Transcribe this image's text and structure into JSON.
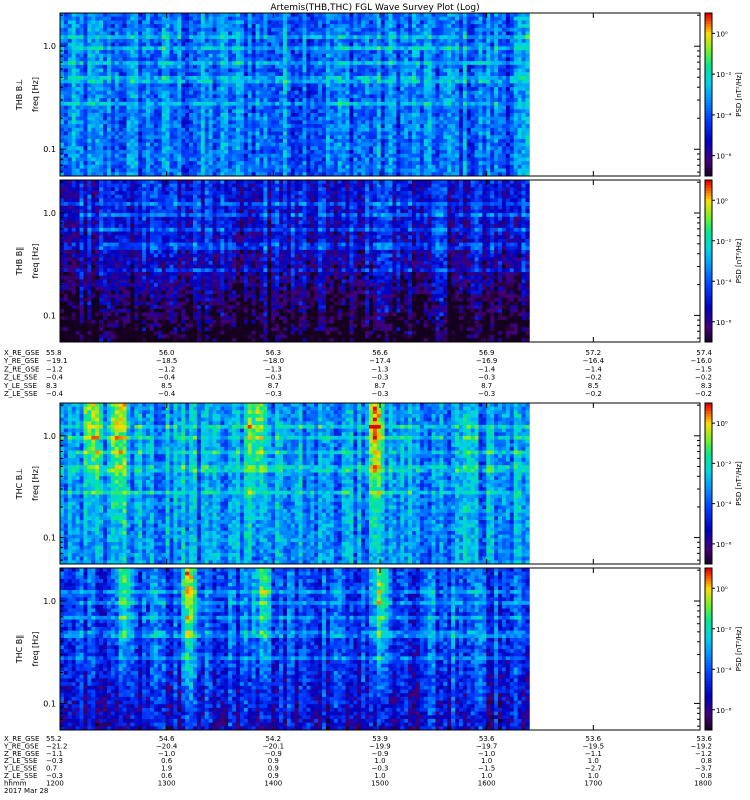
{
  "title": "Artemis(THB,THC) FGL Wave Survey Plot (Log)",
  "chart_data": [
    {
      "type": "heatmap",
      "id": "thb-bperp",
      "ylabel": "THB B⊥",
      "ylabel2": "freq [Hz]",
      "y_scale": "log",
      "ylim": [
        0.055,
        2.1
      ],
      "y_ticks": [
        {
          "v": 1.0,
          "label": "1.0"
        },
        {
          "v": 0.1,
          "label": "0.1"
        }
      ],
      "data_extent_x": [
        1200,
        1640
      ],
      "colorbar": {
        "label": "PSD [nT²/Hz]",
        "scale": "log",
        "range": [
          1e-07,
          10.0
        ],
        "ticks": [
          {
            "v": 1.0,
            "label": "10⁰"
          },
          {
            "v": 0.01,
            "label": "10⁻²"
          },
          {
            "v": 0.0001,
            "label": "10⁻⁴"
          },
          {
            "v": 1e-06,
            "label": "10⁻⁶"
          }
        ]
      },
      "style": {
        "base": 0.42,
        "dark": 0.0,
        "bursts": []
      }
    },
    {
      "type": "heatmap",
      "id": "thb-bpar",
      "ylabel": "THB B∥",
      "ylabel2": "freq [Hz]",
      "y_scale": "log",
      "ylim": [
        0.055,
        2.1
      ],
      "y_ticks": [
        {
          "v": 1.0,
          "label": "1.0"
        },
        {
          "v": 0.1,
          "label": "0.1"
        }
      ],
      "data_extent_x": [
        1200,
        1640
      ],
      "colorbar": {
        "label": "PSD [nT²/Hz]",
        "scale": "log",
        "range": [
          1e-07,
          10.0
        ],
        "ticks": [
          {
            "v": 1.0,
            "label": "10⁰"
          },
          {
            "v": 0.01,
            "label": "10⁻²"
          },
          {
            "v": 0.0001,
            "label": "10⁻⁴"
          },
          {
            "v": 1e-06,
            "label": "10⁻⁶"
          }
        ]
      },
      "style": {
        "base": 0.28,
        "dark": 0.35,
        "bursts": []
      }
    },
    {
      "type": "heatmap",
      "id": "thc-bperp",
      "ylabel": "THC B⊥",
      "ylabel2": "freq [Hz]",
      "y_scale": "log",
      "ylim": [
        0.055,
        2.1
      ],
      "y_ticks": [
        {
          "v": 1.0,
          "label": "1.0"
        },
        {
          "v": 0.1,
          "label": "0.1"
        }
      ],
      "data_extent_x": [
        1200,
        1640
      ],
      "colorbar": {
        "label": "PSD [nT²/Hz]",
        "scale": "log",
        "range": [
          1e-07,
          10.0
        ],
        "ticks": [
          {
            "v": 1.0,
            "label": "10⁰"
          },
          {
            "v": 0.01,
            "label": "10⁻²"
          },
          {
            "v": 0.0001,
            "label": "10⁻⁴"
          },
          {
            "v": 1e-06,
            "label": "10⁻⁶"
          }
        ]
      },
      "style": {
        "base": 0.48,
        "dark": 0.0,
        "bursts": [
          1230,
          1255,
          1385,
          1495
        ]
      }
    },
    {
      "type": "heatmap",
      "id": "thc-bpar",
      "ylabel": "THC B∥",
      "ylabel2": "freq [Hz]",
      "y_scale": "log",
      "ylim": [
        0.055,
        2.1
      ],
      "y_ticks": [
        {
          "v": 1.0,
          "label": "1.0"
        },
        {
          "v": 0.1,
          "label": "0.1"
        }
      ],
      "data_extent_x": [
        1200,
        1640
      ],
      "colorbar": {
        "label": "PSD [nT²/Hz]",
        "scale": "log",
        "range": [
          1e-07,
          10.0
        ],
        "ticks": [
          {
            "v": 1.0,
            "label": "10⁰"
          },
          {
            "v": 0.01,
            "label": "10⁻²"
          },
          {
            "v": 0.0001,
            "label": "10⁻⁴"
          },
          {
            "v": 1e-06,
            "label": "10⁻⁶"
          }
        ]
      },
      "style": {
        "base": 0.38,
        "dark": 0.15,
        "bursts": [
          1260,
          1320,
          1390,
          1500
        ]
      }
    }
  ],
  "x_axis": {
    "range": [
      1200,
      1800
    ],
    "tick_values": [
      1200,
      1300,
      1400,
      1500,
      1600,
      1700,
      1800
    ]
  },
  "ephemeris_thb": {
    "labels": [
      "X_RE_GSE",
      "Y_RE_GSE",
      "Z_RE_GSE",
      "Z_LE_SSE",
      "Y_LE_SSE",
      "Z_LE_SSE"
    ],
    "rows": [
      [
        "55.8",
        "56.0",
        "56.3",
        "56.6",
        "56.9",
        "57.2",
        "57.4"
      ],
      [
        "−19.1",
        "−18.5",
        "−18.0",
        "−17.4",
        "−16.9",
        "−16.4",
        "−16.0"
      ],
      [
        "−1.2",
        "−1.2",
        "−1.3",
        "−1.3",
        "−1.4",
        "−1.4",
        "−1.5"
      ],
      [
        "−0.4",
        "−0.4",
        "−0.3",
        "−0.3",
        "−0.3",
        "−0.2",
        "−0.2"
      ],
      [
        "8.3",
        "8.5",
        "8.7",
        "8.7",
        "8.7",
        "8.5",
        "8.3"
      ],
      [
        "−0.4",
        "−0.4",
        "−0.3",
        "−0.3",
        "−0.3",
        "−0.2",
        "−0.2"
      ]
    ]
  },
  "ephemeris_thc": {
    "labels": [
      "X_RE_GSE",
      "Y_RE_GSE",
      "Z_RE_GSE",
      "Z_LE_SSE",
      "Y_LE_SSE",
      "Z_LE_SSE",
      "hhmm",
      "2017 Mar 28"
    ],
    "rows": [
      [
        "55.2",
        "54.6",
        "54.2",
        "53.9",
        "53.6",
        "53.6",
        "53.6"
      ],
      [
        "−21.2",
        "−20.4",
        "−20.1",
        "−19.9",
        "−19.7",
        "−19.5",
        "−19.2"
      ],
      [
        "−1.1",
        "−1.0",
        "−0.9",
        "−0.9",
        "−1.0",
        "−1.1",
        "−1.2"
      ],
      [
        "−0.3",
        "0.6",
        "0.9",
        "1.0",
        "1.0",
        "1.0",
        "0.8"
      ],
      [
        "0.7",
        "1.9",
        "0.9",
        "−0.3",
        "−1.5",
        "−2.7",
        "−3.7"
      ],
      [
        "−0.3",
        "0.6",
        "0.9",
        "1.0",
        "1.0",
        "1.0",
        "0.8"
      ],
      [
        "1200",
        "1300",
        "1400",
        "1500",
        "1600",
        "1700",
        "1800"
      ]
    ]
  }
}
